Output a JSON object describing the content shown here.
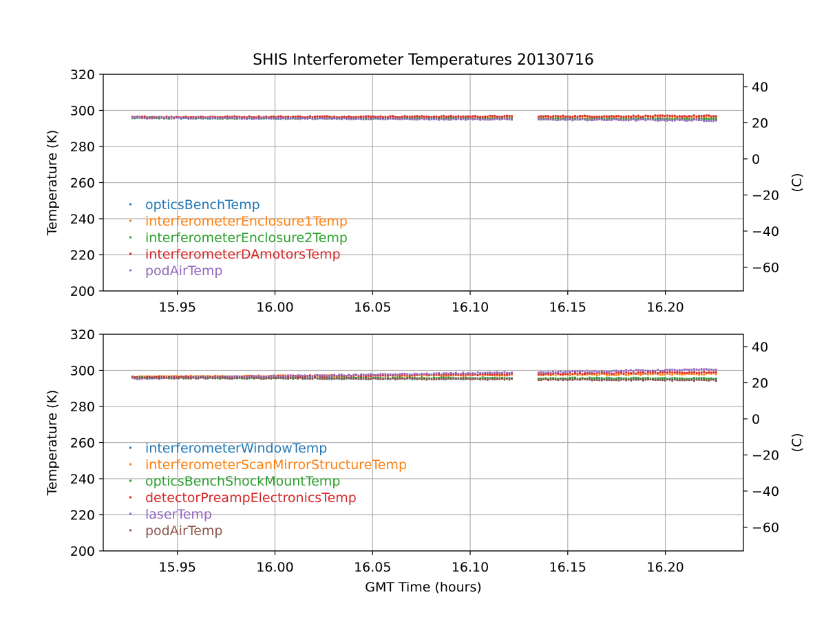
{
  "figure": {
    "title": "SHIS Interferometer Temperatures 20130716",
    "xlabel": "GMT Time (hours)"
  },
  "chart_data": [
    {
      "type": "scatter",
      "title": "SHIS Interferometer Temperatures 20130716",
      "xlabel": "",
      "ylabel": "Temperature (K)",
      "y2label": "(C)",
      "xlim": [
        15.912,
        16.24
      ],
      "ylim": [
        200,
        320
      ],
      "y2lim": [
        -73.15,
        46.85
      ],
      "xticks": [
        "15.95",
        "16.00",
        "16.05",
        "16.10",
        "16.15",
        "16.20"
      ],
      "yticks": [
        "200",
        "220",
        "240",
        "260",
        "280",
        "300",
        "320"
      ],
      "y2ticks": [
        "−60",
        "−40",
        "−20",
        "0",
        "20",
        "40"
      ],
      "grid": true,
      "legend_position": "lower-left",
      "x_range": [
        15.927,
        16.226
      ],
      "data_gap": [
        16.122,
        16.134
      ],
      "series": [
        {
          "name": "opticsBenchTemp",
          "color": "#1f77b4",
          "y_start": 295.8,
          "y_end": 295.2
        },
        {
          "name": "interferometerEnclosure1Temp",
          "color": "#ff7f0e",
          "y_start": 296.0,
          "y_end": 296.3
        },
        {
          "name": "interferometerEnclosure2Temp",
          "color": "#2ca02c",
          "y_start": 295.9,
          "y_end": 295.0
        },
        {
          "name": "interferometerDAmotorsTemp",
          "color": "#d62728",
          "y_start": 296.3,
          "y_end": 296.9
        },
        {
          "name": "podAirTemp",
          "color": "#9467bd",
          "y_start": 296.0,
          "y_end": 294.5
        }
      ]
    },
    {
      "type": "scatter",
      "title": "",
      "xlabel": "GMT Time (hours)",
      "ylabel": "Temperature (K)",
      "y2label": "(C)",
      "xlim": [
        15.912,
        16.24
      ],
      "ylim": [
        200,
        320
      ],
      "y2lim": [
        -73.15,
        46.85
      ],
      "xticks": [
        "15.95",
        "16.00",
        "16.05",
        "16.10",
        "16.15",
        "16.20"
      ],
      "yticks": [
        "200",
        "220",
        "240",
        "260",
        "280",
        "300",
        "320"
      ],
      "y2ticks": [
        "−60",
        "−40",
        "−20",
        "0",
        "20",
        "40"
      ],
      "grid": true,
      "legend_position": "lower-left",
      "x_range": [
        15.927,
        16.226
      ],
      "data_gap": [
        16.122,
        16.134
      ],
      "series": [
        {
          "name": "interferometerWindowTemp",
          "color": "#1f77b4",
          "y_start": 296.0,
          "y_end": 295.0
        },
        {
          "name": "interferometerScanMirrorStructureTemp",
          "color": "#ff7f0e",
          "y_start": 296.5,
          "y_end": 298.0
        },
        {
          "name": "opticsBenchShockMountTemp",
          "color": "#2ca02c",
          "y_start": 296.0,
          "y_end": 295.5
        },
        {
          "name": "detectorPreampElectronicsTemp",
          "color": "#d62728",
          "y_start": 296.0,
          "y_end": 299.0
        },
        {
          "name": "laserTemp",
          "color": "#9467bd",
          "y_start": 295.5,
          "y_end": 300.5
        },
        {
          "name": "podAirTemp",
          "color": "#8c564b",
          "y_start": 296.0,
          "y_end": 294.5
        }
      ]
    }
  ]
}
